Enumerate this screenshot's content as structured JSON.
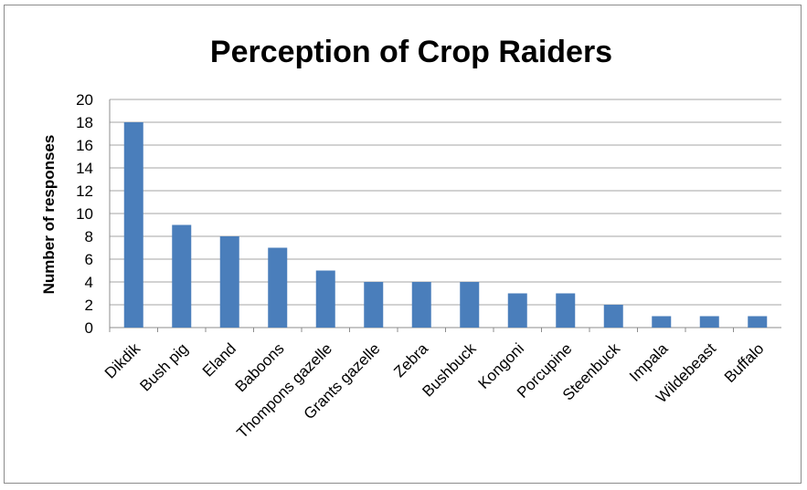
{
  "chart_data": {
    "type": "bar",
    "title": "Perception of Crop Raiders",
    "xlabel": "",
    "ylabel": "Number of responses",
    "ylim": [
      0,
      20
    ],
    "yticks": [
      "0",
      "2",
      "4",
      "6",
      "8",
      "10",
      "12",
      "14",
      "16",
      "18",
      "20"
    ],
    "grid": true,
    "categories": [
      "Dikdik",
      "Bush pig",
      "Eland",
      "Baboons",
      "Thompons gazelle",
      "Grants gazelle",
      "Zebra",
      "Bushbuck",
      "Kongoni",
      "Porcupine",
      "Steenbuck",
      "Impala",
      "Wildebeast",
      "Buffalo"
    ],
    "values": [
      18,
      9,
      8,
      7,
      5,
      4,
      4,
      4,
      3,
      3,
      2,
      1,
      1,
      1
    ],
    "bar_color": "#4a7ebb",
    "grid_color": "#a6a6a6"
  }
}
